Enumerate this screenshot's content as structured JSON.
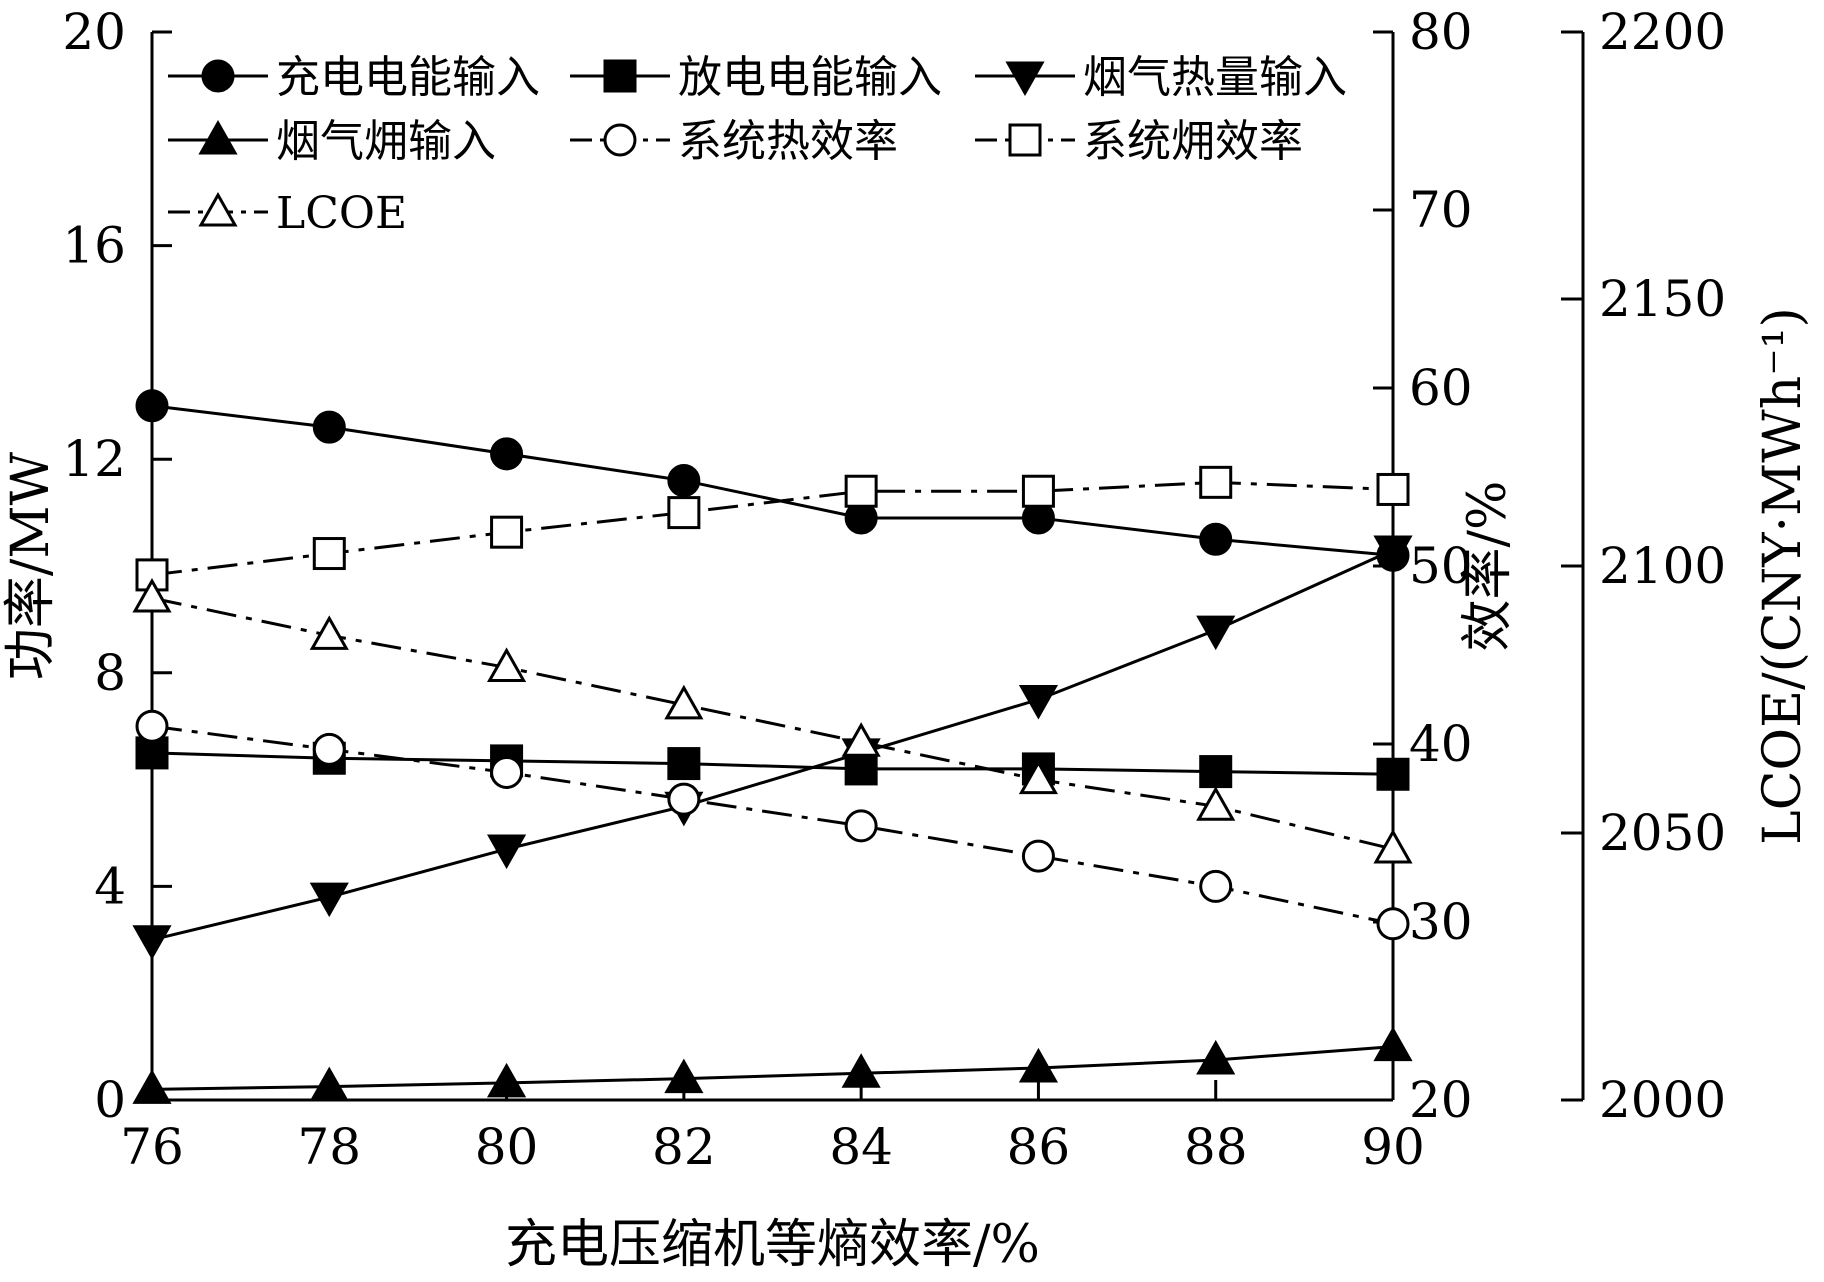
{
  "chart_data": {
    "type": "line",
    "x": [
      76,
      78,
      80,
      82,
      84,
      86,
      88,
      90
    ],
    "xlabel": "充电压缩机等熵效率/%",
    "xlim": [
      76,
      90
    ],
    "x_ticks": [
      "76",
      "78",
      "80",
      "82",
      "84",
      "86",
      "88",
      "90"
    ],
    "axes": {
      "left": {
        "label": "功率/MW",
        "range": [
          0,
          20
        ],
        "ticks": [
          "0",
          "4",
          "8",
          "12",
          "16",
          "20"
        ]
      },
      "right1": {
        "label": "效率/%",
        "range": [
          20,
          80
        ],
        "ticks": [
          "20",
          "30",
          "40",
          "50",
          "60",
          "70",
          "80"
        ]
      },
      "right2": {
        "label": "LCOE/(CNY·MWh⁻¹)",
        "range": [
          2000,
          2200
        ],
        "ticks": [
          "2000",
          "2050",
          "2100",
          "2150",
          "2200"
        ]
      }
    },
    "series": [
      {
        "name": "充电电能输入",
        "axis": "left",
        "marker": "circle-filled",
        "dash": "solid",
        "values": [
          13.0,
          12.6,
          12.1,
          11.6,
          10.9,
          10.9,
          10.5,
          10.2
        ]
      },
      {
        "name": "放电电能输入",
        "axis": "left",
        "marker": "square-filled",
        "dash": "solid",
        "values": [
          6.5,
          6.4,
          6.35,
          6.3,
          6.2,
          6.2,
          6.15,
          6.1
        ]
      },
      {
        "name": "烟气热量输入",
        "axis": "left",
        "marker": "triangle-down-filled",
        "dash": "solid",
        "values": [
          3.0,
          3.8,
          4.7,
          5.5,
          6.5,
          7.5,
          8.8,
          10.3
        ]
      },
      {
        "name": "烟气㶲输入",
        "axis": "left",
        "marker": "triangle-up-filled",
        "dash": "solid",
        "values": [
          0.2,
          0.25,
          0.32,
          0.4,
          0.5,
          0.6,
          0.75,
          1.0
        ]
      },
      {
        "name": "系统热效率",
        "axis": "right1",
        "marker": "circle-open",
        "dash": "dashdot",
        "values": [
          41.0,
          39.7,
          38.4,
          36.9,
          35.4,
          33.7,
          32.0,
          29.9
        ]
      },
      {
        "name": "系统㶲效率",
        "axis": "right1",
        "marker": "square-open",
        "dash": "dashdot",
        "values": [
          49.5,
          50.7,
          51.9,
          53.0,
          54.2,
          54.2,
          54.7,
          54.3
        ]
      },
      {
        "name": "LCOE",
        "axis": "right2",
        "marker": "triangle-up-open",
        "dash": "dashdot",
        "values": [
          2094,
          2087,
          2081,
          2074,
          2067,
          2060,
          2055,
          2047
        ]
      }
    ],
    "legend": {
      "placement": "top-left",
      "entries": [
        "充电电能输入",
        "放电电能输入",
        "烟气热量输入",
        "烟气㶲输入",
        "系统热效率",
        "系统㶲效率",
        "LCOE"
      ]
    },
    "grid": false
  }
}
